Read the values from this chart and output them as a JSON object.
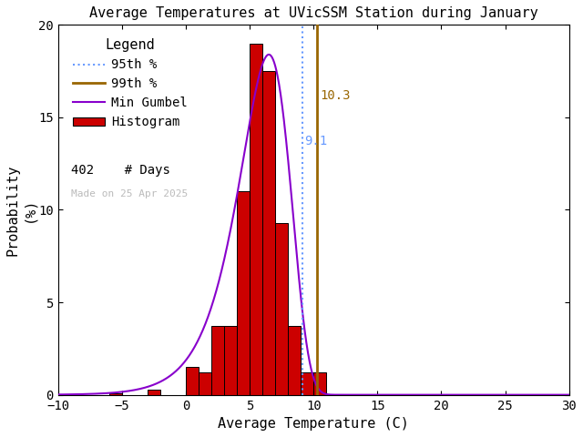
{
  "title": "Average Temperatures at UVicSSM Station during January",
  "xlabel": "Average Temperature (C)",
  "ylabel": "Probability\n(%)",
  "xlim": [
    -10,
    30
  ],
  "ylim": [
    0,
    20
  ],
  "xticks": [
    -10,
    -5,
    0,
    5,
    10,
    15,
    20,
    25,
    30
  ],
  "yticks": [
    0,
    5,
    10,
    15,
    20
  ],
  "bar_left_edges": [
    -8,
    -7,
    -6,
    -5,
    -4,
    -3,
    -2,
    -1,
    0,
    1,
    2,
    3,
    4,
    5,
    6,
    7,
    8,
    9,
    10
  ],
  "bar_heights": [
    0.0,
    0.0,
    0.1,
    0.0,
    0.0,
    0.3,
    0.0,
    0.0,
    1.5,
    1.2,
    3.7,
    3.7,
    11.0,
    19.0,
    17.5,
    9.3,
    3.7,
    1.2,
    1.2
  ],
  "bar_color": "#cc0000",
  "bar_edgecolor": "#000000",
  "gumbel_color": "#8800cc",
  "pct95_color": "#6699ff",
  "pct99_color": "#996600",
  "pct95_x": 9.1,
  "pct99_x": 10.3,
  "n_days": 402,
  "made_on": "Made on 25 Apr 2025",
  "background_color": "#ffffff",
  "gumbel_mu": 6.5,
  "gumbel_beta": 2.0
}
